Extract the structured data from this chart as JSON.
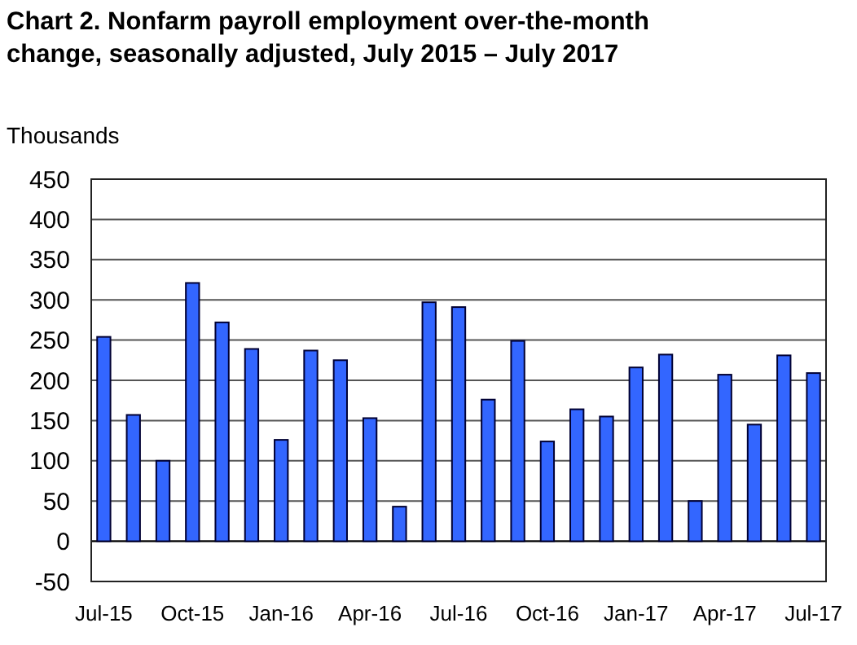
{
  "chart_data": {
    "type": "bar",
    "title": "Chart 2. Nonfarm payroll employment over-the-month change, seasonally adjusted, July 2015 – July 2017",
    "ylabel": "Thousands",
    "categories": [
      "Jul-15",
      null,
      null,
      "Oct-15",
      null,
      null,
      "Jan-16",
      null,
      null,
      "Apr-16",
      null,
      null,
      "Jul-16",
      null,
      null,
      "Oct-16",
      null,
      null,
      "Jan-17",
      null,
      null,
      "Apr-17",
      null,
      null,
      "Jul-17"
    ],
    "values": [
      254,
      157,
      100,
      321,
      272,
      239,
      126,
      237,
      225,
      153,
      43,
      297,
      291,
      176,
      249,
      124,
      164,
      155,
      216,
      232,
      50,
      207,
      145,
      231,
      209
    ],
    "color": "#3366ff",
    "ylim": [
      -50,
      450
    ],
    "yticks": [
      -50,
      0,
      50,
      100,
      150,
      200,
      250,
      300,
      350,
      400,
      450
    ],
    "grid": "y"
  }
}
